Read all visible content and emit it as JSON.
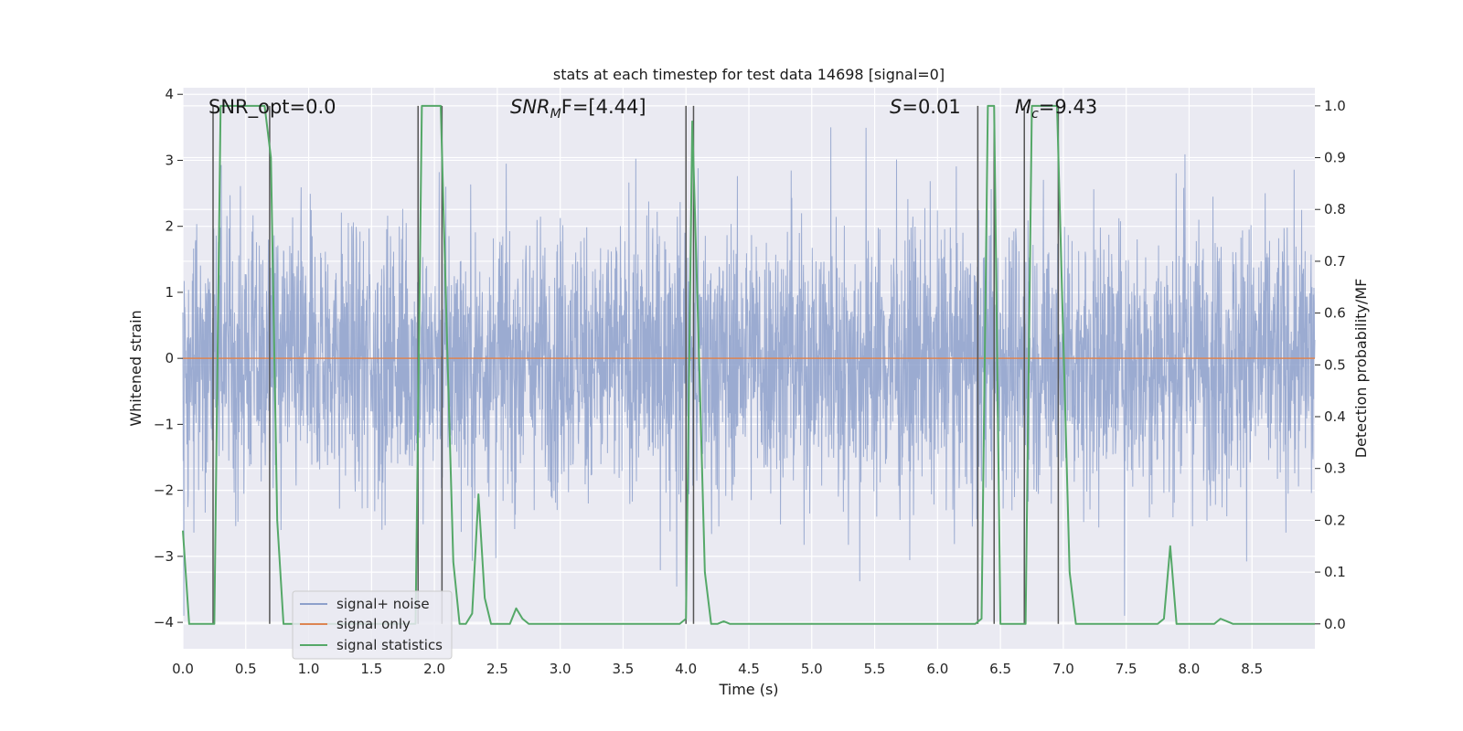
{
  "chart_data": {
    "type": "line",
    "title": "stats at each timestep for test data 14698 [signal=0]",
    "xlabel": "Time (s)",
    "ylabel": "Whitened strain",
    "y2label": "Detection probability/MF",
    "xlim": [
      0.0,
      9.0
    ],
    "ylim": [
      -4.4,
      4.1
    ],
    "y2lim": [
      -0.048,
      1.035
    ],
    "xticks": [
      0.0,
      0.5,
      1.0,
      1.5,
      2.0,
      2.5,
      3.0,
      3.5,
      4.0,
      4.5,
      5.0,
      5.5,
      6.0,
      6.5,
      7.0,
      7.5,
      8.0,
      8.5
    ],
    "xtick_labels": [
      "0.0",
      "0.5",
      "1.0",
      "1.5",
      "2.0",
      "2.5",
      "3.0",
      "3.5",
      "4.0",
      "4.5",
      "5.0",
      "5.5",
      "6.0",
      "6.5",
      "7.0",
      "7.5",
      "8.0",
      "8.5"
    ],
    "yticks": [
      -4,
      -3,
      -2,
      -1,
      0,
      1,
      2,
      3,
      4
    ],
    "ytick_labels": [
      "−4",
      "−3",
      "−2",
      "−1",
      "0",
      "1",
      "2",
      "3",
      "4"
    ],
    "y2ticks": [
      0.0,
      0.1,
      0.2,
      0.3,
      0.4,
      0.5,
      0.6,
      0.7,
      0.8,
      0.9,
      1.0
    ],
    "y2tick_labels": [
      "0.0",
      "0.1",
      "0.2",
      "0.3",
      "0.4",
      "0.5",
      "0.6",
      "0.7",
      "0.8",
      "0.9",
      "1.0"
    ],
    "colors": {
      "noise": "#8da0cb",
      "signal_only": "#dd8452",
      "statistics": "#55a868",
      "vlines": "#555555",
      "background": "#eaeaf2",
      "grid": "#ffffff"
    },
    "series": [
      {
        "name": "signal+ noise",
        "axis": "left",
        "style": "dense noise band",
        "approx_envelope": {
          "typical_low": -2.0,
          "typical_high": 2.0,
          "min": -3.9,
          "max": 3.5
        }
      },
      {
        "name": "signal only",
        "axis": "left",
        "x": [
          0.0,
          9.0
        ],
        "y": [
          0.0,
          0.0
        ]
      },
      {
        "name": "signal statistics",
        "axis": "right",
        "x": [
          0.0,
          0.05,
          0.1,
          0.15,
          0.2,
          0.25,
          0.3,
          0.35,
          0.4,
          0.45,
          0.5,
          0.55,
          0.6,
          0.65,
          0.7,
          0.75,
          0.8,
          0.85,
          0.9,
          0.95,
          1.0,
          1.05,
          1.1,
          1.15,
          1.2,
          1.25,
          1.3,
          1.35,
          1.4,
          1.45,
          1.5,
          1.55,
          1.6,
          1.65,
          1.7,
          1.75,
          1.8,
          1.85,
          1.9,
          1.95,
          2.0,
          2.05,
          2.1,
          2.15,
          2.2,
          2.25,
          2.3,
          2.35,
          2.4,
          2.45,
          2.5,
          2.55,
          2.6,
          2.65,
          2.7,
          2.75,
          2.8,
          2.85,
          2.9,
          2.95,
          3.0,
          3.05,
          3.1,
          3.15,
          3.2,
          3.25,
          3.3,
          3.35,
          3.4,
          3.45,
          3.5,
          3.55,
          3.6,
          3.65,
          3.7,
          3.75,
          3.8,
          3.85,
          3.9,
          3.95,
          4.0,
          4.05,
          4.1,
          4.15,
          4.2,
          4.25,
          4.3,
          4.35,
          4.4,
          4.45,
          4.5,
          4.55,
          4.6,
          4.65,
          4.7,
          4.75,
          4.8,
          4.85,
          4.9,
          4.95,
          5.0,
          5.05,
          5.1,
          5.15,
          5.2,
          5.25,
          5.3,
          5.35,
          5.4,
          5.45,
          5.5,
          5.55,
          5.6,
          5.65,
          5.7,
          5.75,
          5.8,
          5.85,
          5.9,
          5.95,
          6.0,
          6.05,
          6.1,
          6.15,
          6.2,
          6.25,
          6.3,
          6.35,
          6.4,
          6.45,
          6.5,
          6.55,
          6.6,
          6.65,
          6.7,
          6.75,
          6.8,
          6.85,
          6.9,
          6.95,
          7.0,
          7.05,
          7.1,
          7.15,
          7.2,
          7.25,
          7.3,
          7.35,
          7.4,
          7.45,
          7.5,
          7.55,
          7.6,
          7.65,
          7.7,
          7.75,
          7.8,
          7.85,
          7.9,
          7.95,
          8.0,
          8.05,
          8.1,
          8.15,
          8.2,
          8.25,
          8.3,
          8.35,
          8.4,
          8.45,
          8.5,
          8.55,
          8.6,
          8.65,
          8.7,
          8.75,
          8.8,
          8.85,
          8.9,
          8.95,
          9.0
        ],
        "y": [
          0.18,
          0.0,
          0.0,
          0.0,
          0.0,
          0.0,
          1.0,
          1.0,
          1.0,
          1.0,
          1.0,
          1.0,
          1.0,
          1.0,
          0.9,
          0.2,
          0.0,
          0.0,
          0.0,
          0.0,
          0.0,
          0.0,
          0.0,
          0.0,
          0.0,
          0.0,
          0.0,
          0.0,
          0.0,
          0.0,
          0.0,
          0.0,
          0.0,
          0.0,
          0.0,
          0.0,
          0.0,
          0.0,
          1.0,
          1.0,
          1.0,
          1.0,
          0.55,
          0.12,
          0.0,
          0.0,
          0.02,
          0.25,
          0.05,
          0.0,
          0.0,
          0.0,
          0.0,
          0.03,
          0.01,
          0.0,
          0.0,
          0.0,
          0.0,
          0.0,
          0.0,
          0.0,
          0.0,
          0.0,
          0.0,
          0.0,
          0.0,
          0.0,
          0.0,
          0.0,
          0.0,
          0.0,
          0.0,
          0.0,
          0.0,
          0.0,
          0.0,
          0.0,
          0.0,
          0.0,
          0.01,
          0.97,
          0.55,
          0.1,
          0.0,
          0.0,
          0.005,
          0.0,
          0.0,
          0.0,
          0.0,
          0.0,
          0.0,
          0.0,
          0.0,
          0.0,
          0.0,
          0.0,
          0.0,
          0.0,
          0.0,
          0.0,
          0.0,
          0.0,
          0.0,
          0.0,
          0.0,
          0.0,
          0.0,
          0.0,
          0.0,
          0.0,
          0.0,
          0.0,
          0.0,
          0.0,
          0.0,
          0.0,
          0.0,
          0.0,
          0.0,
          0.0,
          0.0,
          0.0,
          0.0,
          0.0,
          0.0,
          0.01,
          1.0,
          1.0,
          0.0,
          0.0,
          0.0,
          0.0,
          0.0,
          1.0,
          1.0,
          1.0,
          1.0,
          1.0,
          0.55,
          0.1,
          0.0,
          0.0,
          0.0,
          0.0,
          0.0,
          0.0,
          0.0,
          0.0,
          0.0,
          0.0,
          0.0,
          0.0,
          0.0,
          0.0,
          0.01,
          0.15,
          0.0,
          0.0,
          0.0,
          0.0,
          0.0,
          0.0,
          0.0,
          0.01,
          0.005,
          0.0,
          0.0,
          0.0,
          0.0,
          0.0,
          0.0,
          0.0,
          0.0,
          0.0,
          0.0,
          0.0,
          0.0,
          0.0,
          0.0
        ]
      }
    ],
    "vlines_x": [
      0.24,
      0.69,
      1.87,
      2.06,
      4.0,
      4.06,
      6.32,
      6.45,
      6.69,
      6.96
    ],
    "vlines_range_y2": [
      0.0,
      1.0
    ],
    "annotations": {
      "snr_opt": "SNR_opt=0.0",
      "snr_mf_symbol": "SNR",
      "snr_mf_sub": "M",
      "snr_mf_tail": "F=[4.44]",
      "s_symbol": "S",
      "s_value": "=0.01",
      "mc_symbol": "M",
      "mc_sub": "c",
      "mc_value": "=9.43"
    },
    "legend": {
      "position": "lower-left",
      "entries": [
        "signal+ noise",
        "signal only",
        "signal statistics"
      ]
    }
  }
}
